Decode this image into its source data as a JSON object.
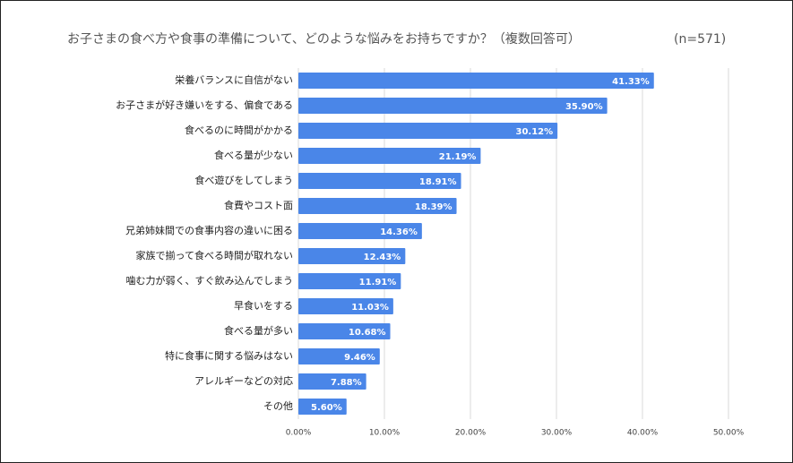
{
  "chart_data": {
    "type": "hbar",
    "title": "お子さまの食べ方や食事の準備について、どのような悩みをお持ちですか？（複数回答可）",
    "subtitle": "(n=571)",
    "categories": [
      "栄養バランスに自信がない",
      "お子さまが好き嫌いをする、偏食である",
      "食べるのに時間がかかる",
      "食べる量が少ない",
      "食べ遊びをしてしまう",
      "食費やコスト面",
      "兄弟姉妹間での食事内容の違いに困る",
      "家族で揃って食べる時間が取れない",
      "噛む力が弱く、すぐ飲み込んでしまう",
      "早食いをする",
      "食べる量が多い",
      "特に食事に関する悩みはない",
      "アレルギーなどの対応",
      "その他"
    ],
    "values": [
      41.33,
      35.9,
      30.12,
      21.19,
      18.91,
      18.39,
      14.36,
      12.43,
      11.91,
      11.03,
      10.68,
      9.46,
      7.88,
      5.6
    ],
    "value_labels": [
      "41.33%",
      "35.90%",
      "30.12%",
      "21.19%",
      "18.91%",
      "18.39%",
      "14.36%",
      "12.43%",
      "11.91%",
      "11.03%",
      "10.68%",
      "9.46%",
      "7.88%",
      "5.60%"
    ],
    "color": "#4a86e8",
    "xlim": [
      0,
      50
    ],
    "xticks": [
      {
        "value": 0,
        "label": "0.00%"
      },
      {
        "value": 10,
        "label": "10.00%"
      },
      {
        "value": 20,
        "label": "20.00%"
      },
      {
        "value": 30,
        "label": "30.00%"
      },
      {
        "value": 40,
        "label": "40.00%"
      },
      {
        "value": 50,
        "label": "50.00%"
      }
    ],
    "grid": true
  }
}
